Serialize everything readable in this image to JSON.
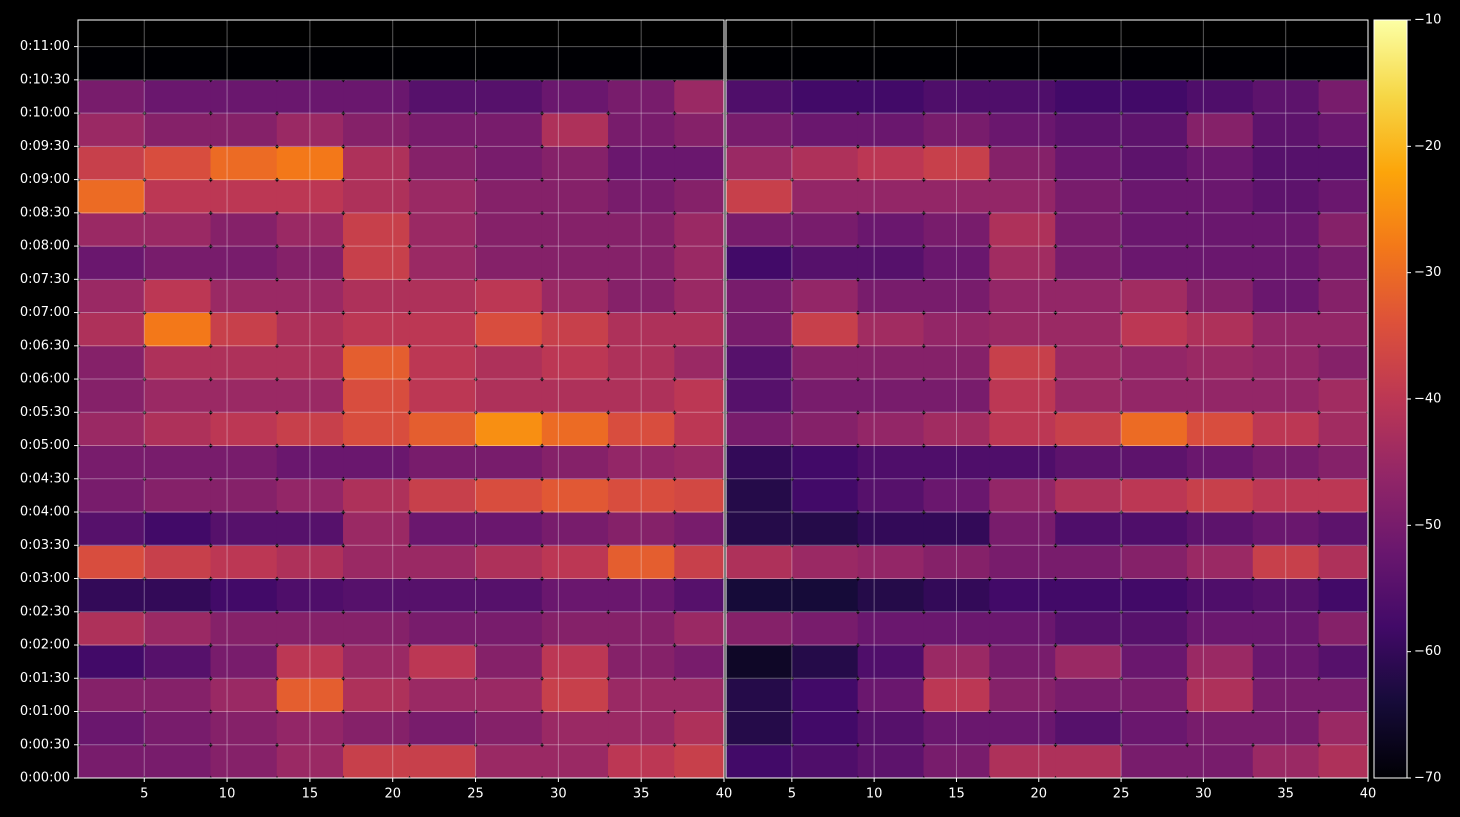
{
  "chart_data": [
    {
      "type": "heatmap",
      "x_edges": [
        1,
        5,
        9,
        13,
        17,
        21,
        25,
        29,
        33,
        37,
        40
      ],
      "y_edges": [
        0,
        30,
        60,
        90,
        120,
        150,
        180,
        210,
        240,
        270,
        300,
        330,
        360,
        390,
        420,
        450,
        480,
        510,
        540,
        570,
        600,
        630,
        660
      ],
      "values": [
        [
          -50,
          -50,
          -48,
          -45,
          -38,
          -38,
          -45,
          -45,
          -40,
          -38
        ],
        [
          -52,
          -50,
          -48,
          -46,
          -48,
          -50,
          -48,
          -45,
          -45,
          -42
        ],
        [
          -48,
          -48,
          -45,
          -32,
          -42,
          -45,
          -45,
          -38,
          -45,
          -45
        ],
        [
          -58,
          -55,
          -50,
          -40,
          -45,
          -40,
          -48,
          -40,
          -48,
          -50
        ],
        [
          -42,
          -45,
          -48,
          -48,
          -48,
          -50,
          -50,
          -48,
          -48,
          -45
        ],
        [
          -60,
          -60,
          -58,
          -56,
          -55,
          -55,
          -55,
          -52,
          -52,
          -55
        ],
        [
          -35,
          -38,
          -40,
          -42,
          -45,
          -45,
          -42,
          -40,
          -32,
          -38
        ],
        [
          -55,
          -58,
          -55,
          -55,
          -45,
          -52,
          -52,
          -50,
          -48,
          -50
        ],
        [
          -50,
          -48,
          -48,
          -46,
          -42,
          -38,
          -35,
          -33,
          -35,
          -36
        ],
        [
          -50,
          -50,
          -50,
          -52,
          -52,
          -50,
          -50,
          -48,
          -46,
          -45
        ],
        [
          -45,
          -42,
          -40,
          -38,
          -35,
          -32,
          -25,
          -30,
          -35,
          -40
        ],
        [
          -48,
          -45,
          -45,
          -45,
          -35,
          -40,
          -42,
          -42,
          -42,
          -40
        ],
        [
          -48,
          -42,
          -42,
          -42,
          -32,
          -40,
          -42,
          -40,
          -42,
          -45
        ],
        [
          -42,
          -28,
          -38,
          -42,
          -40,
          -40,
          -35,
          -38,
          -42,
          -42
        ],
        [
          -45,
          -40,
          -45,
          -45,
          -42,
          -42,
          -40,
          -45,
          -48,
          -45
        ],
        [
          -52,
          -50,
          -50,
          -48,
          -38,
          -45,
          -48,
          -48,
          -48,
          -45
        ],
        [
          -45,
          -45,
          -48,
          -45,
          -38,
          -45,
          -48,
          -48,
          -48,
          -45
        ],
        [
          -30,
          -40,
          -40,
          -40,
          -42,
          -45,
          -48,
          -48,
          -50,
          -48
        ],
        [
          -38,
          -35,
          -30,
          -28,
          -42,
          -48,
          -50,
          -48,
          -52,
          -52
        ],
        [
          -45,
          -48,
          -48,
          -45,
          -48,
          -50,
          -50,
          -42,
          -50,
          -48
        ],
        [
          -50,
          -52,
          -52,
          -52,
          -52,
          -55,
          -55,
          -52,
          -50,
          -45
        ],
        [
          -70,
          -70,
          -70,
          -70,
          -70,
          -70,
          -70,
          -70,
          -70,
          -70
        ]
      ],
      "xlim": [
        1,
        40
      ],
      "xticks": [
        5,
        10,
        15,
        20,
        25,
        30,
        35,
        40
      ],
      "ylim": [
        0,
        684
      ],
      "yticks": [
        {
          "value": 0,
          "label": "0:00:00"
        },
        {
          "value": 30,
          "label": "0:00:30"
        },
        {
          "value": 60,
          "label": "0:01:00"
        },
        {
          "value": 90,
          "label": "0:01:30"
        },
        {
          "value": 120,
          "label": "0:02:00"
        },
        {
          "value": 150,
          "label": "0:02:30"
        },
        {
          "value": 180,
          "label": "0:03:00"
        },
        {
          "value": 210,
          "label": "0:03:30"
        },
        {
          "value": 240,
          "label": "0:04:00"
        },
        {
          "value": 270,
          "label": "0:04:30"
        },
        {
          "value": 300,
          "label": "0:05:00"
        },
        {
          "value": 330,
          "label": "0:05:30"
        },
        {
          "value": 360,
          "label": "0:06:00"
        },
        {
          "value": 390,
          "label": "0:06:30"
        },
        {
          "value": 420,
          "label": "0:07:00"
        },
        {
          "value": 450,
          "label": "0:07:30"
        },
        {
          "value": 480,
          "label": "0:08:00"
        },
        {
          "value": 510,
          "label": "0:08:30"
        },
        {
          "value": 540,
          "label": "0:09:00"
        },
        {
          "value": 570,
          "label": "0:09:30"
        },
        {
          "value": 600,
          "label": "0:10:00"
        },
        {
          "value": 630,
          "label": "0:10:30"
        },
        {
          "value": 660,
          "label": "0:11:00"
        }
      ],
      "grid": true
    },
    {
      "type": "heatmap",
      "x_edges": [
        1,
        5,
        9,
        13,
        17,
        21,
        25,
        29,
        33,
        37,
        40
      ],
      "y_edges": [
        0,
        30,
        60,
        90,
        120,
        150,
        180,
        210,
        240,
        270,
        300,
        330,
        360,
        390,
        420,
        450,
        480,
        510,
        540,
        570,
        600,
        630,
        660
      ],
      "values": [
        [
          -58,
          -56,
          -54,
          -50,
          -42,
          -42,
          -50,
          -50,
          -45,
          -42
        ],
        [
          -62,
          -58,
          -55,
          -52,
          -52,
          -55,
          -52,
          -50,
          -50,
          -45
        ],
        [
          -62,
          -58,
          -52,
          -40,
          -48,
          -50,
          -50,
          -42,
          -50,
          -50
        ],
        [
          -66,
          -62,
          -56,
          -45,
          -50,
          -45,
          -52,
          -45,
          -52,
          -55
        ],
        [
          -48,
          -50,
          -52,
          -52,
          -52,
          -55,
          -55,
          -52,
          -52,
          -48
        ],
        [
          -64,
          -64,
          -62,
          -60,
          -58,
          -58,
          -58,
          -56,
          -55,
          -58
        ],
        [
          -42,
          -45,
          -46,
          -48,
          -50,
          -50,
          -48,
          -45,
          -38,
          -42
        ],
        [
          -62,
          -62,
          -60,
          -60,
          -50,
          -56,
          -56,
          -54,
          -52,
          -54
        ],
        [
          -62,
          -58,
          -55,
          -52,
          -46,
          -42,
          -40,
          -38,
          -40,
          -40
        ],
        [
          -60,
          -58,
          -56,
          -56,
          -56,
          -54,
          -54,
          -52,
          -50,
          -48
        ],
        [
          -50,
          -48,
          -46,
          -44,
          -40,
          -38,
          -30,
          -35,
          -40,
          -44
        ],
        [
          -55,
          -50,
          -50,
          -50,
          -40,
          -45,
          -46,
          -46,
          -46,
          -44
        ],
        [
          -55,
          -48,
          -48,
          -48,
          -38,
          -45,
          -46,
          -45,
          -46,
          -48
        ],
        [
          -50,
          -38,
          -44,
          -46,
          -45,
          -45,
          -40,
          -42,
          -46,
          -46
        ],
        [
          -50,
          -46,
          -50,
          -50,
          -46,
          -46,
          -44,
          -48,
          -52,
          -48
        ],
        [
          -58,
          -55,
          -55,
          -52,
          -44,
          -50,
          -52,
          -52,
          -52,
          -50
        ],
        [
          -50,
          -50,
          -52,
          -50,
          -42,
          -50,
          -52,
          -52,
          -52,
          -48
        ],
        [
          -38,
          -46,
          -46,
          -46,
          -46,
          -50,
          -52,
          -52,
          -54,
          -52
        ],
        [
          -45,
          -42,
          -40,
          -38,
          -48,
          -52,
          -54,
          -52,
          -55,
          -55
        ],
        [
          -50,
          -52,
          -52,
          -50,
          -52,
          -54,
          -54,
          -48,
          -54,
          -52
        ],
        [
          -56,
          -58,
          -58,
          -56,
          -56,
          -58,
          -58,
          -56,
          -54,
          -50
        ],
        [
          -70,
          -70,
          -70,
          -70,
          -70,
          -70,
          -70,
          -70,
          -70,
          -70
        ]
      ],
      "xlim": [
        1,
        40
      ],
      "xticks": [
        5,
        10,
        15,
        20,
        25,
        30,
        35,
        40
      ],
      "ylim": [
        0,
        684
      ],
      "yticks": [
        0,
        30,
        60,
        90,
        120,
        150,
        180,
        210,
        240,
        270,
        300,
        330,
        360,
        390,
        420,
        450,
        480,
        510,
        540,
        570,
        600,
        630,
        660
      ],
      "grid": true,
      "colorbar": {
        "lim": [
          -70,
          -10
        ],
        "colormap": "inferno",
        "ticks": [
          {
            "value": -10,
            "label": "−10"
          },
          {
            "value": -20,
            "label": "−20"
          },
          {
            "value": -30,
            "label": "−30"
          },
          {
            "value": -40,
            "label": "−40"
          },
          {
            "value": -50,
            "label": "−50"
          },
          {
            "value": -60,
            "label": "−60"
          },
          {
            "value": -70,
            "label": "−70"
          }
        ]
      }
    }
  ]
}
